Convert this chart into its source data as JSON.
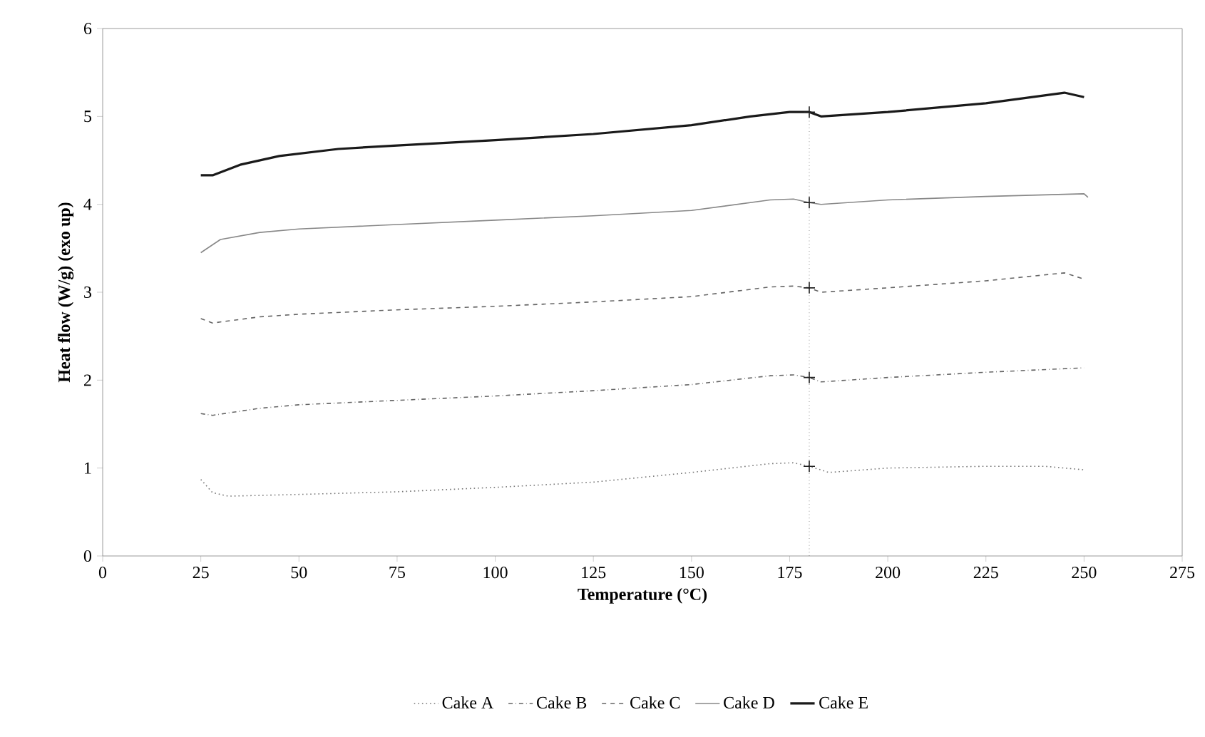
{
  "chart_data": {
    "type": "line",
    "xlabel": "Temperature (°C)",
    "ylabel": "Heat flow (W/g) (exo up)",
    "xlim": [
      0,
      275
    ],
    "ylim": [
      0,
      6
    ],
    "xticks": [
      0,
      25,
      50,
      75,
      100,
      125,
      150,
      175,
      200,
      225,
      250,
      275
    ],
    "yticks": [
      0,
      1,
      2,
      3,
      4,
      5,
      6
    ],
    "grid": false,
    "legend": "bottom",
    "marker": "none",
    "series": [
      {
        "name": "Cake A",
        "color": "#777777",
        "line_style": "dotted",
        "x": [
          25,
          28,
          32,
          50,
          75,
          100,
          125,
          150,
          170,
          176,
          180,
          185,
          200,
          225,
          240,
          250
        ],
        "values": [
          0.87,
          0.72,
          0.68,
          0.7,
          0.73,
          0.78,
          0.84,
          0.95,
          1.05,
          1.06,
          1.02,
          0.95,
          1.0,
          1.02,
          1.02,
          0.98
        ]
      },
      {
        "name": "Cake B",
        "color": "#666666",
        "line_style": "dashdotted",
        "x": [
          25,
          28,
          40,
          50,
          75,
          100,
          125,
          150,
          170,
          176,
          180,
          183,
          200,
          225,
          245,
          250
        ],
        "values": [
          1.62,
          1.6,
          1.68,
          1.72,
          1.77,
          1.82,
          1.88,
          1.95,
          2.05,
          2.06,
          2.03,
          1.98,
          2.03,
          2.09,
          2.13,
          2.14
        ]
      },
      {
        "name": "Cake C",
        "color": "#666666",
        "line_style": "dashed",
        "x": [
          25,
          28,
          40,
          50,
          75,
          100,
          125,
          150,
          170,
          176,
          180,
          183,
          200,
          225,
          245,
          250
        ],
        "values": [
          2.7,
          2.65,
          2.72,
          2.75,
          2.8,
          2.84,
          2.89,
          2.95,
          3.06,
          3.07,
          3.05,
          3.0,
          3.05,
          3.13,
          3.22,
          3.15
        ]
      },
      {
        "name": "Cake D",
        "color": "#888888",
        "line_style": "solid",
        "x": [
          25,
          30,
          40,
          50,
          75,
          100,
          125,
          150,
          170,
          176,
          180,
          183,
          200,
          225,
          250,
          251
        ],
        "values": [
          3.45,
          3.6,
          3.68,
          3.72,
          3.77,
          3.82,
          3.87,
          3.93,
          4.05,
          4.06,
          4.02,
          4.0,
          4.05,
          4.09,
          4.12,
          4.08
        ]
      },
      {
        "name": "Cake E",
        "color": "#1a1a1a",
        "line_style": "solid",
        "x": [
          25,
          28,
          35,
          45,
          60,
          75,
          100,
          125,
          150,
          165,
          175,
          180,
          183,
          200,
          225,
          245,
          250
        ],
        "values": [
          4.33,
          4.33,
          4.45,
          4.55,
          4.63,
          4.67,
          4.73,
          4.8,
          4.9,
          5.0,
          5.05,
          5.05,
          5.0,
          5.05,
          5.15,
          5.27,
          5.22
        ]
      },
      {
        "type": "scatter",
        "marker": "cross",
        "color": "#222222",
        "x": [
          180,
          180,
          180,
          180,
          180
        ],
        "values": [
          1.02,
          2.03,
          3.05,
          4.02,
          5.05
        ]
      }
    ],
    "ref_lines": [
      {
        "axis": "x",
        "value": 180,
        "color": "#555555",
        "line_style": "dotted"
      }
    ]
  }
}
